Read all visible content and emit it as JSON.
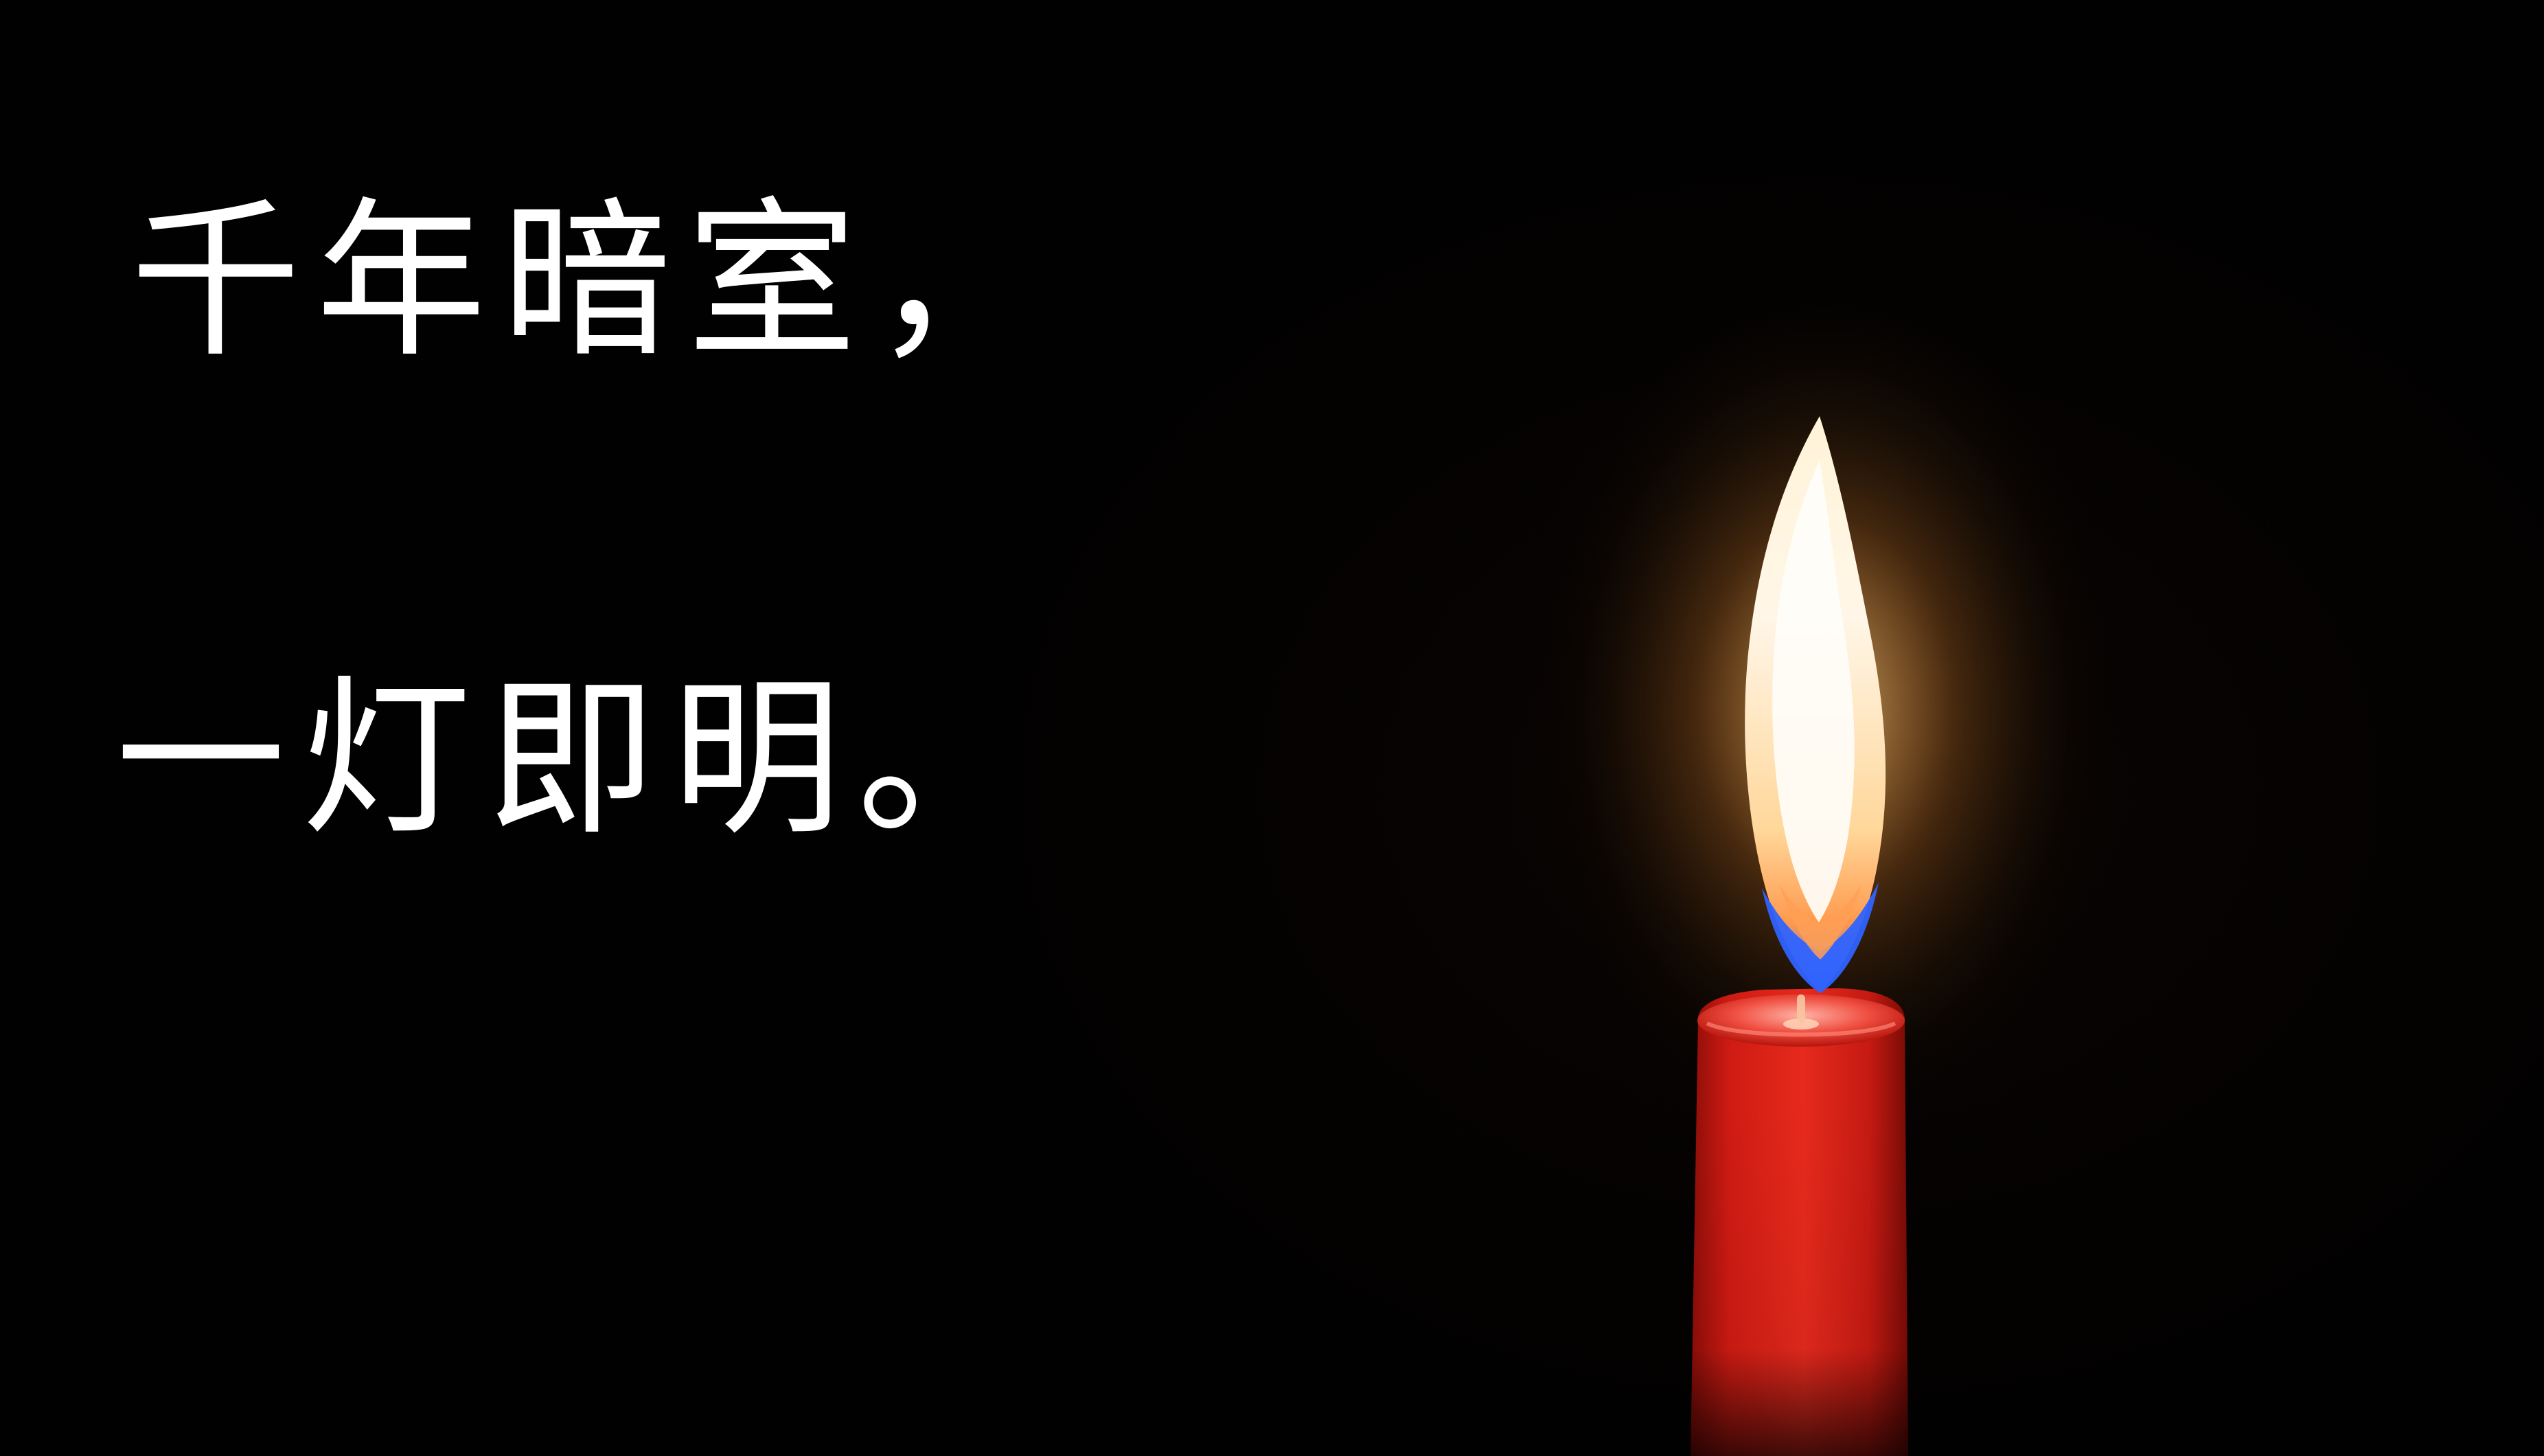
{
  "quote": {
    "line_1": "千年暗室，",
    "line_2": "一灯即明。"
  },
  "colors": {
    "background": "#020101",
    "text": "#ffffff",
    "candle_wax": "#d91f16",
    "candle_rim": "#f05a4c",
    "flame_core": "#fff8e8",
    "flame_outer": "#ffb348",
    "flame_base": "#2c6bff"
  },
  "icons": {
    "candle": "candle-icon",
    "flame": "flame-icon"
  }
}
